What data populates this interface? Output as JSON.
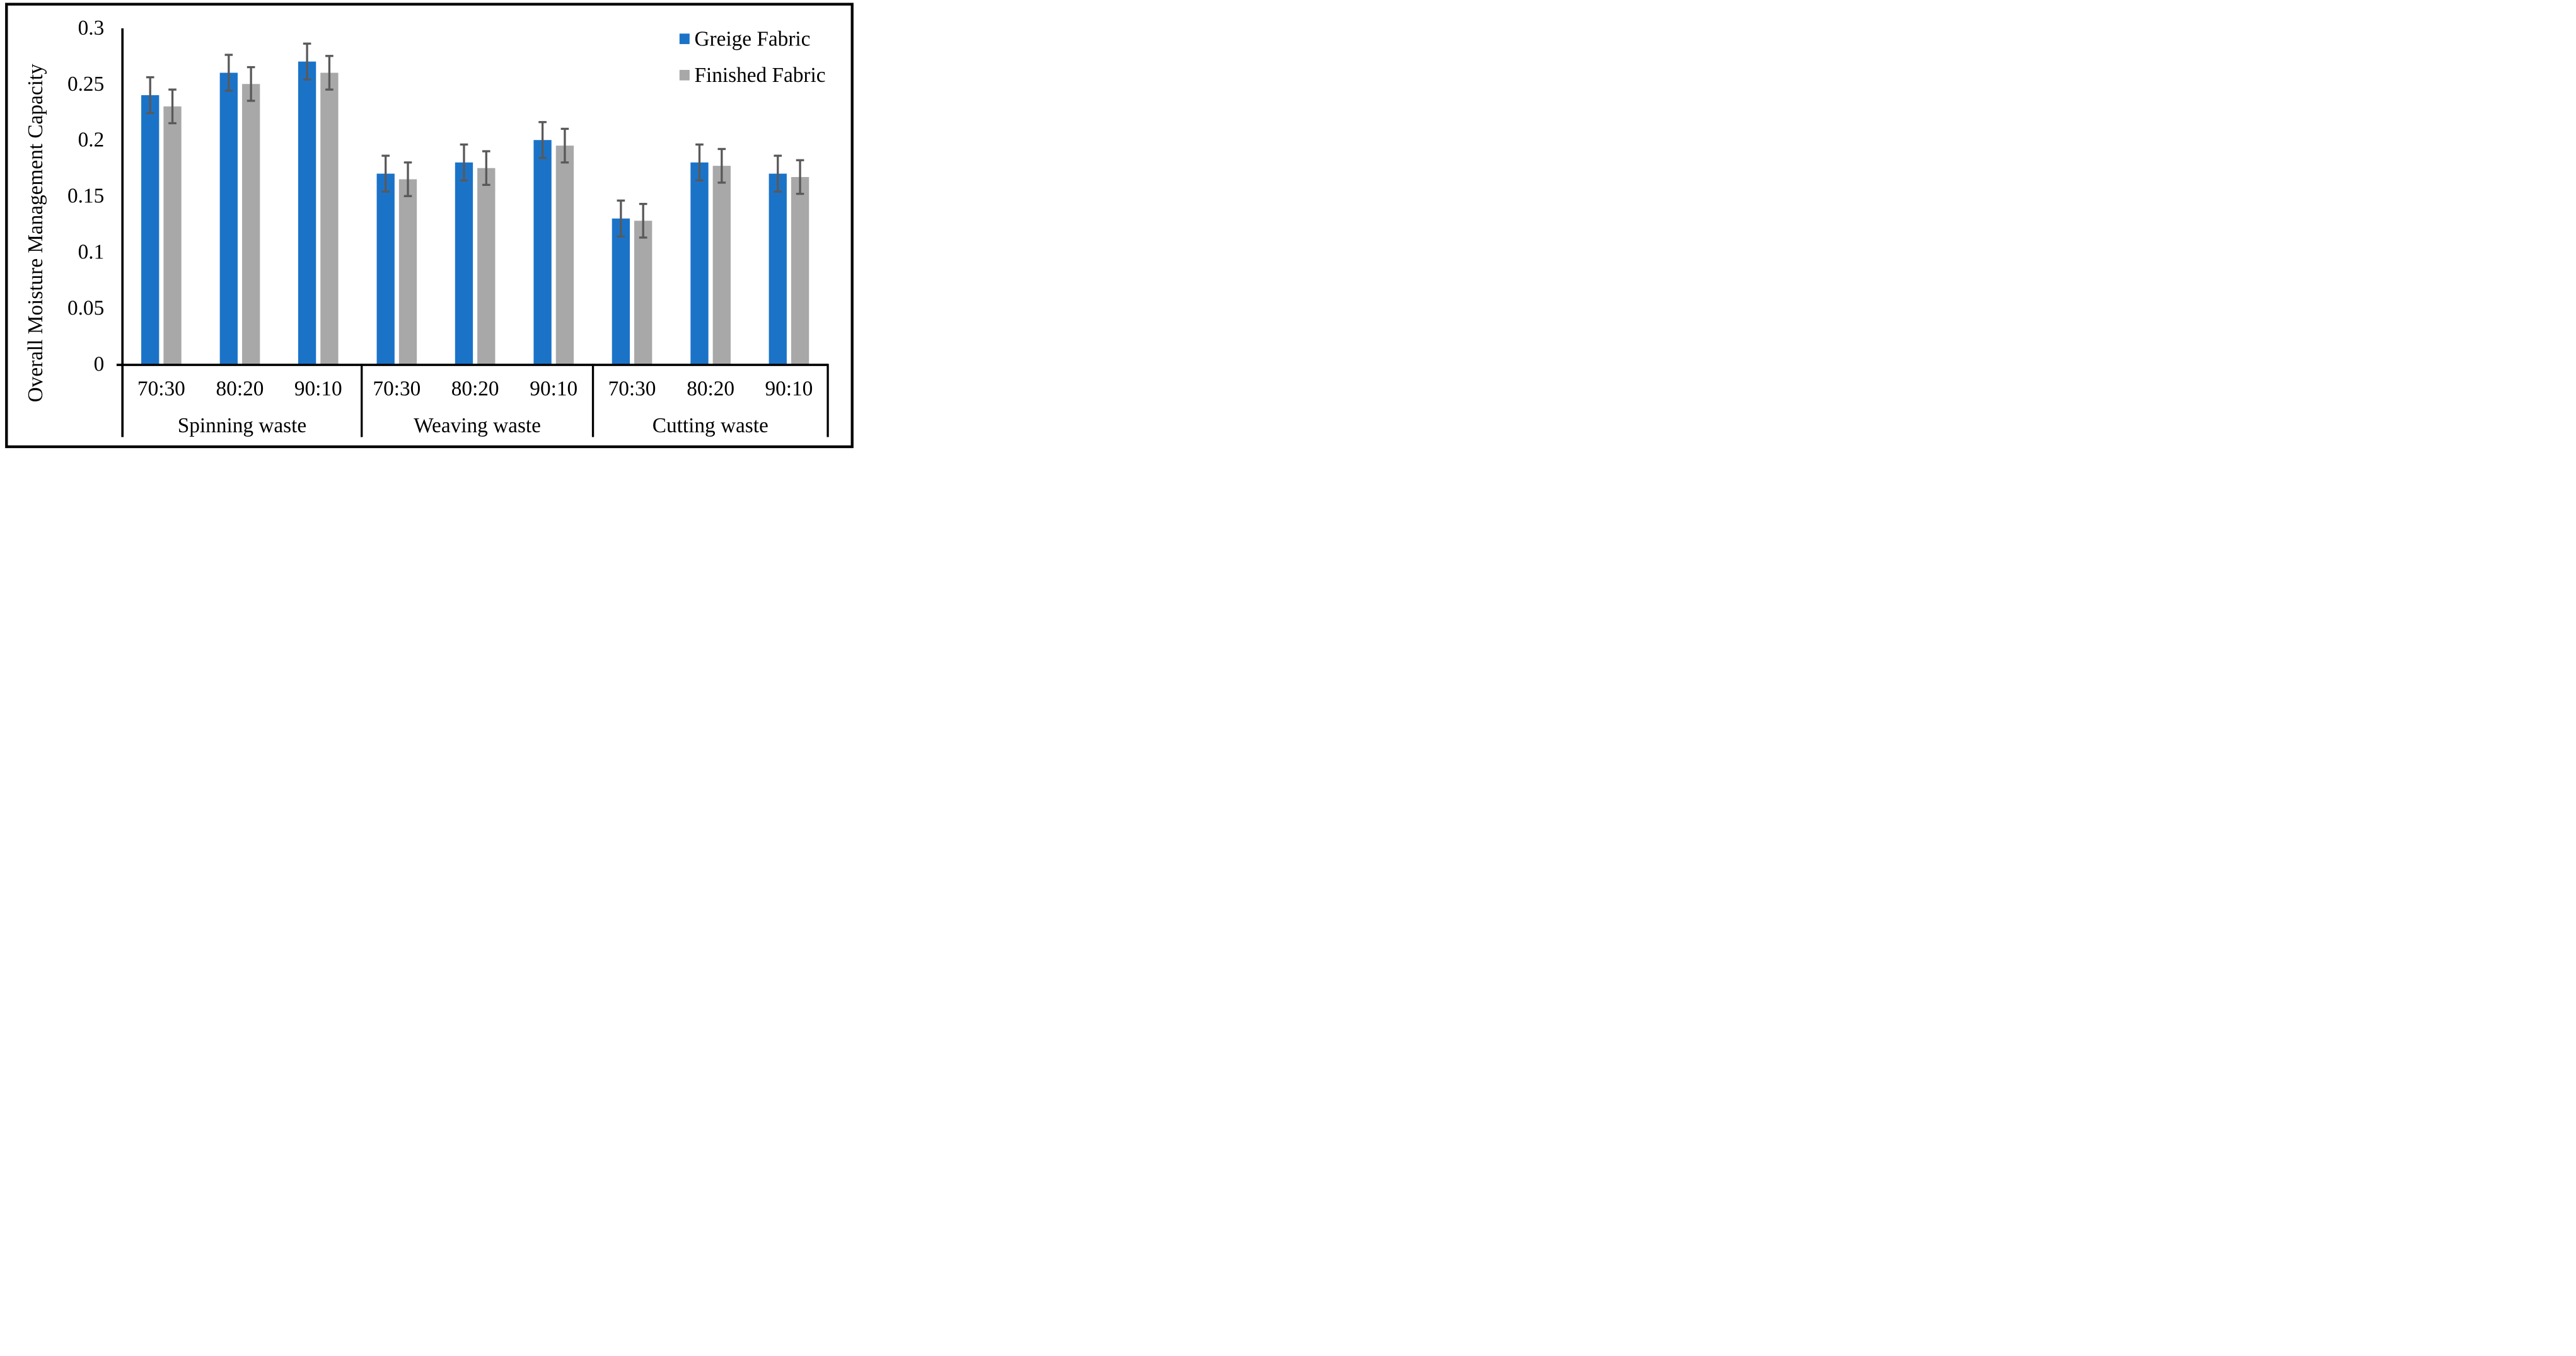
{
  "figure": {
    "background": "#ffffff",
    "border_color": "#000000"
  },
  "chart_data": {
    "type": "bar",
    "title": "",
    "xlabel": "",
    "ylabel": "Overall Moisture Management Capacity",
    "ylim": [
      0,
      0.3
    ],
    "ytick_values": [
      0,
      0.05,
      0.1,
      0.15,
      0.2,
      0.25,
      0.3
    ],
    "ytick_labels": [
      "0",
      "0.05",
      "0.1",
      "0.15",
      "0.2",
      "0.25",
      "0.3"
    ],
    "grid": false,
    "legend_position": "top-right",
    "groups": [
      "Spinning waste",
      "Weaving waste",
      "Cutting waste"
    ],
    "categories": [
      "70:30",
      "80:20",
      "90:10"
    ],
    "series": [
      {
        "name": "Greige Fabric",
        "color": "#1B73C8",
        "values": [
          0.24,
          0.26,
          0.27,
          0.17,
          0.18,
          0.2,
          0.13,
          0.18,
          0.17
        ],
        "error": 0.016
      },
      {
        "name": "Finished Fabric",
        "color": "#A8A8A8",
        "values": [
          0.23,
          0.25,
          0.26,
          0.165,
          0.175,
          0.195,
          0.128,
          0.177,
          0.167
        ],
        "error": 0.015
      }
    ],
    "error_bar_color": "#595959",
    "axis_color": "#000000"
  }
}
